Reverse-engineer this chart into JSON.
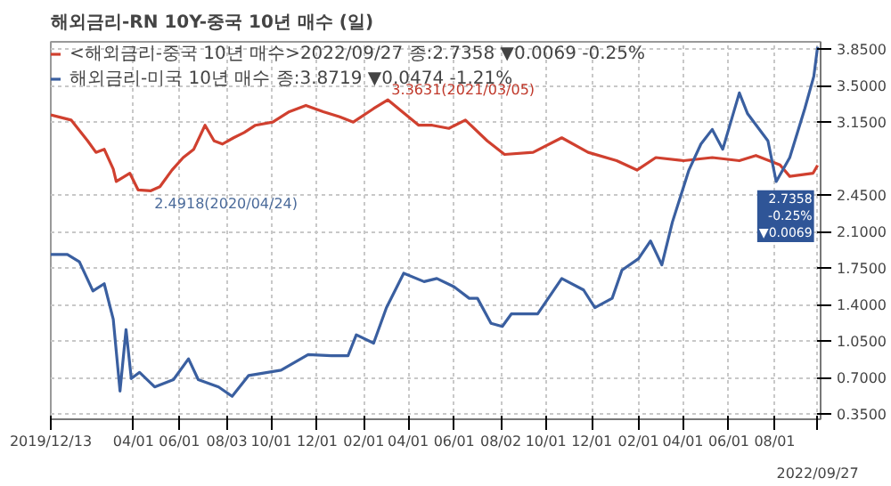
{
  "chart_data": {
    "type": "line",
    "title": "해외금리-RN    10Y-중국 10년 매수 (일)",
    "x": [
      "2019-12-13",
      "2020-01-09",
      "2020-01-31",
      "2020-02-11",
      "2020-02-22",
      "2020-03-05",
      "2020-03-09",
      "2020-03-27",
      "2020-04-07",
      "2020-04-24",
      "2020-05-06",
      "2020-05-22",
      "2020-06-06",
      "2020-06-20",
      "2020-07-05",
      "2020-07-17",
      "2020-07-28",
      "2020-08-12",
      "2020-08-26",
      "2020-09-10",
      "2020-10-03",
      "2020-10-25",
      "2020-11-16",
      "2020-12-09",
      "2020-12-31",
      "2021-01-18",
      "2021-02-14",
      "2021-03-05",
      "2021-03-24",
      "2021-04-15",
      "2021-05-03",
      "2021-05-25",
      "2021-06-16",
      "2021-07-15",
      "2021-08-07",
      "2021-09-14",
      "2021-10-22",
      "2021-11-26",
      "2022-01-03",
      "2022-01-30",
      "2022-02-24",
      "2022-04-02",
      "2022-05-10",
      "2022-06-15",
      "2022-07-07",
      "2022-08-08",
      "2022-08-21",
      "2022-09-21",
      "2022-09-27"
    ],
    "series": [
      {
        "name": "<해외금리-중국 10년 매수>2022/09/27 종:2.7358 ▼0.0069 -0.25%",
        "color": "#d0402f",
        "values": [
          3.22,
          3.17,
          2.97,
          2.86,
          2.89,
          2.7,
          2.58,
          2.66,
          2.5,
          2.4918,
          2.53,
          2.69,
          2.81,
          2.89,
          3.12,
          2.97,
          2.94,
          3.0,
          3.05,
          3.12,
          3.15,
          3.25,
          3.31,
          3.25,
          3.2,
          3.15,
          3.28,
          3.3631,
          3.25,
          3.12,
          3.12,
          3.09,
          3.17,
          2.97,
          2.84,
          2.86,
          3.0,
          2.86,
          2.78,
          2.69,
          2.81,
          2.78,
          2.81,
          2.78,
          2.83,
          2.74,
          2.63,
          2.66,
          2.7358
        ]
      },
      {
        "name": "해외금리-미국 10년 매수 종:3.8719 ▼0.0474 -1.21%",
        "color": "#3a5fa0",
        "x": [
          "2019-12-13",
          "2020-01-04",
          "2020-01-20",
          "2020-02-07",
          "2020-02-22",
          "2020-03-05",
          "2020-03-14",
          "2020-03-22",
          "2020-03-29",
          "2020-04-09",
          "2020-04-29",
          "2020-05-24",
          "2020-06-13",
          "2020-06-26",
          "2020-07-23",
          "2020-08-10",
          "2020-09-01",
          "2020-10-14",
          "2020-11-19",
          "2020-12-20",
          "2021-01-11",
          "2021-01-22",
          "2021-02-14",
          "2021-03-03",
          "2021-03-26",
          "2021-04-22",
          "2021-05-09",
          "2021-06-01",
          "2021-06-21",
          "2021-07-02",
          "2021-07-20",
          "2021-08-04",
          "2021-08-16",
          "2021-09-20",
          "2021-10-22",
          "2021-11-20",
          "2021-12-05",
          "2021-12-28",
          "2022-01-10",
          "2022-02-01",
          "2022-02-17",
          "2022-03-04",
          "2022-03-18",
          "2022-04-09",
          "2022-04-25",
          "2022-05-10",
          "2022-05-24",
          "2022-06-15",
          "2022-06-26",
          "2022-07-23",
          "2022-08-03",
          "2022-08-21",
          "2022-09-10",
          "2022-09-22",
          "2022-09-27"
        ],
        "values": [
          1.88,
          1.88,
          1.81,
          1.53,
          1.6,
          1.26,
          0.57,
          1.16,
          0.69,
          0.75,
          0.61,
          0.68,
          0.88,
          0.68,
          0.61,
          0.52,
          0.72,
          0.77,
          0.92,
          0.91,
          0.91,
          1.11,
          1.03,
          1.37,
          1.7,
          1.62,
          1.65,
          1.57,
          1.46,
          1.46,
          1.22,
          1.19,
          1.31,
          1.31,
          1.65,
          1.54,
          1.37,
          1.46,
          1.73,
          1.84,
          2.01,
          1.78,
          2.19,
          2.69,
          2.94,
          3.08,
          2.89,
          3.43,
          3.23,
          2.97,
          2.58,
          2.81,
          3.28,
          3.59,
          3.8719
        ]
      }
    ],
    "xlim": [
      "2019-12-13",
      "2022-10-01"
    ],
    "xticks": [
      {
        "value": "2019-12-13",
        "label": "2019/12/13"
      },
      {
        "value": "2020-04-01",
        "label": "04/01"
      },
      {
        "value": "2020-06-01",
        "label": "06/01"
      },
      {
        "value": "2020-08-03",
        "label": "08/03"
      },
      {
        "value": "2020-10-01",
        "label": "10/01"
      },
      {
        "value": "2020-12-01",
        "label": "12/01"
      },
      {
        "value": "2021-02-01",
        "label": "02/01"
      },
      {
        "value": "2021-04-01",
        "label": "04/01"
      },
      {
        "value": "2021-06-01",
        "label": "06/01"
      },
      {
        "value": "2021-08-02",
        "label": "08/02"
      },
      {
        "value": "2021-10-01",
        "label": "10/01"
      },
      {
        "value": "2021-12-01",
        "label": "12/01"
      },
      {
        "value": "2022-02-01",
        "label": "02/01"
      },
      {
        "value": "2022-04-01",
        "label": "04/01"
      },
      {
        "value": "2022-06-01",
        "label": "06/01"
      },
      {
        "value": "2022-08-01",
        "label": "08/01"
      },
      {
        "value": "2022-09-27",
        "label": null
      }
    ],
    "ylim": [
      0.3,
      3.92
    ],
    "yticks": [
      {
        "value": 0.35,
        "label": "0.3500"
      },
      {
        "value": 0.7,
        "label": "0.7000"
      },
      {
        "value": 1.05,
        "label": "1.0500"
      },
      {
        "value": 1.4,
        "label": "1.4000"
      },
      {
        "value": 1.75,
        "label": "1.7500"
      },
      {
        "value": 2.1,
        "label": "2.1000"
      },
      {
        "value": 2.45,
        "label": "2.4500"
      },
      {
        "value": 3.15,
        "label": "3.1500"
      },
      {
        "value": 3.5,
        "label": "3.5000"
      },
      {
        "value": 3.85,
        "label": "3.8500"
      }
    ],
    "annotations": [
      {
        "text": "3.3631(2021/03/05)",
        "x": "2021-03-05",
        "y": 3.3631
      },
      {
        "text": "2.4918(2020/04/24)",
        "x": "2020-04-24",
        "y": 2.4918
      },
      {
        "text": "2.7358\n-0.25%\n▼0.0069",
        "x": "2022-09-27",
        "y": 2.7358
      },
      "2022/09/27"
    ],
    "grid": true,
    "legend": "top left",
    "marker": "none",
    "line_style": "solid"
  }
}
